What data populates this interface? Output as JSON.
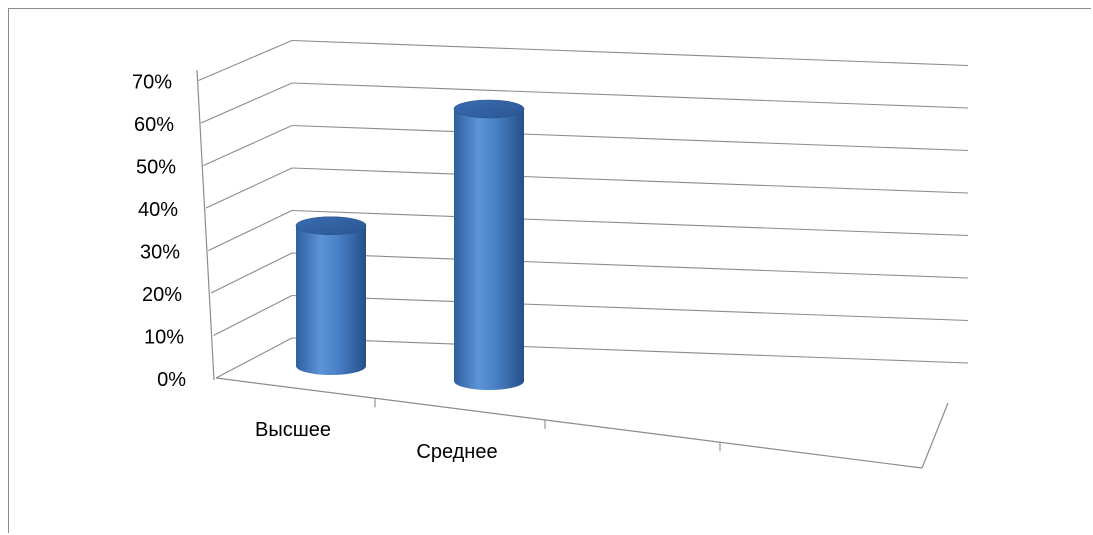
{
  "chart_data": {
    "type": "bar",
    "style": "3d-cylinder",
    "categories": [
      "Высшее",
      "Среднее"
    ],
    "values": [
      33,
      64
    ],
    "y_ticks": [
      "0%",
      "10%",
      "20%",
      "30%",
      "40%",
      "50%",
      "60%",
      "70%"
    ],
    "ylim": [
      0,
      70
    ],
    "grid": true,
    "legend": "none",
    "bar_color": "#4f81bd"
  }
}
